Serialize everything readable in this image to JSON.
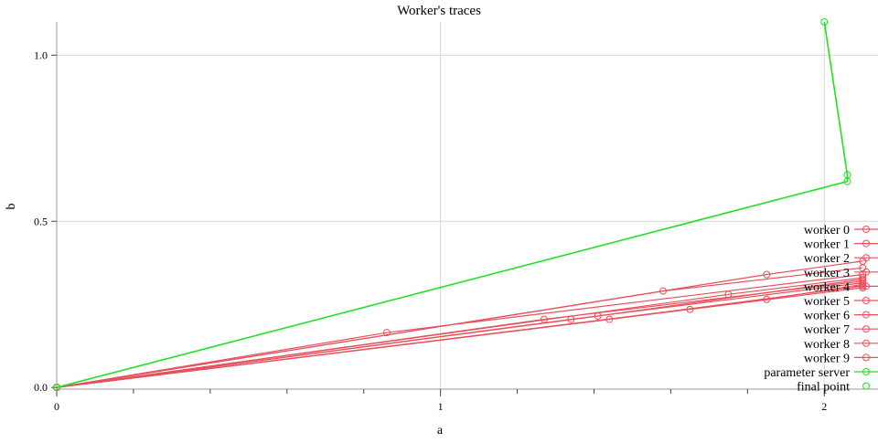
{
  "chart_data": {
    "type": "line",
    "title": "Worker's traces",
    "xlabel": "a",
    "ylabel": "b",
    "xlim": [
      0,
      2.14
    ],
    "ylim": [
      -0.005,
      1.1
    ],
    "grid": true,
    "legend_position": "right",
    "x_ticks": [
      {
        "value": 0,
        "label": "0"
      },
      {
        "value": 1,
        "label": "1"
      },
      {
        "value": 2,
        "label": "2"
      }
    ],
    "x_minor_ticks": [
      0.2,
      0.4,
      0.6,
      0.8,
      1.2,
      1.4,
      1.6,
      1.8
    ],
    "y_ticks": [
      {
        "value": 0,
        "label": "0.0"
      },
      {
        "value": 0.5,
        "label": "0.5"
      },
      {
        "value": 1.0,
        "label": "1.0"
      }
    ],
    "colors": {
      "workers": "#e8505b",
      "parameter_server": "#22e022",
      "final_point": "#22e022"
    },
    "series": [
      {
        "name": "worker 0",
        "kind": "worker",
        "points": [
          [
            0,
            0
          ],
          [
            1.85,
            0.34
          ],
          [
            2.1,
            0.38
          ]
        ]
      },
      {
        "name": "worker 1",
        "kind": "worker",
        "points": [
          [
            0,
            0
          ],
          [
            1.58,
            0.29
          ],
          [
            2.1,
            0.36
          ]
        ]
      },
      {
        "name": "worker 2",
        "kind": "worker",
        "points": [
          [
            0,
            0
          ],
          [
            0.86,
            0.165
          ],
          [
            2.1,
            0.34
          ]
        ]
      },
      {
        "name": "worker 3",
        "kind": "worker",
        "points": [
          [
            0,
            0
          ],
          [
            1.75,
            0.28
          ],
          [
            2.1,
            0.33
          ]
        ]
      },
      {
        "name": "worker 4",
        "kind": "worker",
        "points": [
          [
            0,
            0
          ],
          [
            1.27,
            0.205
          ],
          [
            2.1,
            0.32
          ]
        ]
      },
      {
        "name": "worker 5",
        "kind": "worker",
        "points": [
          [
            0,
            0
          ],
          [
            1.34,
            0.205
          ],
          [
            2.1,
            0.315
          ]
        ]
      },
      {
        "name": "worker 6",
        "kind": "worker",
        "points": [
          [
            0,
            0
          ],
          [
            1.85,
            0.265
          ],
          [
            2.1,
            0.31
          ]
        ]
      },
      {
        "name": "worker 7",
        "kind": "worker",
        "points": [
          [
            0,
            0
          ],
          [
            1.44,
            0.205
          ],
          [
            2.1,
            0.305
          ]
        ]
      },
      {
        "name": "worker 8",
        "kind": "worker",
        "points": [
          [
            0,
            0
          ],
          [
            1.65,
            0.235
          ],
          [
            2.1,
            0.3
          ]
        ]
      },
      {
        "name": "worker 9",
        "kind": "worker",
        "points": [
          [
            0,
            0
          ],
          [
            1.41,
            0.215
          ],
          [
            2.1,
            0.325
          ]
        ]
      },
      {
        "name": "parameter server",
        "kind": "server",
        "points": [
          [
            0,
            0
          ],
          [
            2.06,
            0.62
          ],
          [
            2.06,
            0.64
          ],
          [
            2.0,
            1.1
          ]
        ]
      },
      {
        "name": "final point",
        "kind": "final",
        "points": [
          [
            0,
            0
          ]
        ]
      }
    ]
  }
}
